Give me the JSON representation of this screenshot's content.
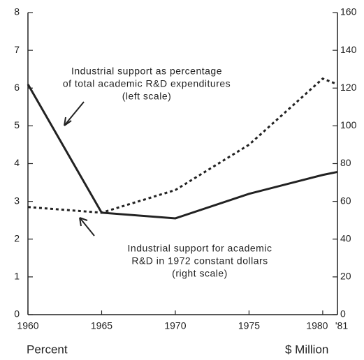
{
  "chart_data": {
    "type": "line",
    "x": [
      1960,
      1965,
      1970,
      1975,
      1980,
      1981
    ],
    "series": [
      {
        "name": "Industrial support as percentage of total academic R&D expenditures",
        "color": "#222222",
        "style": "solid",
        "values": [
          6.1,
          2.7,
          2.55,
          3.2,
          3.7,
          3.78
        ]
      },
      {
        "name": "Industrial support for academic R&D in 1972 constant dollars",
        "color": "#222222",
        "style": "dotted",
        "axis": "y2",
        "values": [
          57,
          54,
          66,
          90,
          125,
          122
        ]
      }
    ],
    "xlim": [
      1960,
      1981
    ],
    "xticks": [
      1960,
      1965,
      1970,
      1975,
      1980,
      {
        "value": 1981,
        "label": "'81"
      }
    ],
    "ylim": [
      0,
      8
    ],
    "yticks": [
      0,
      1,
      2,
      3,
      4,
      5,
      6,
      7,
      8
    ],
    "y2lim": [
      0,
      160
    ],
    "y2ticks": [
      0,
      20,
      40,
      60,
      80,
      100,
      120,
      140,
      160
    ],
    "ylabel": "Percent",
    "y2label": "$ Million",
    "annotations": [
      [
        "Industrial support as percentage",
        "of total academic R&D expenditures",
        "(left scale)"
      ],
      [
        "Industrial support for academic",
        "R&D in 1972 constant dollars",
        "(right scale)"
      ]
    ]
  }
}
